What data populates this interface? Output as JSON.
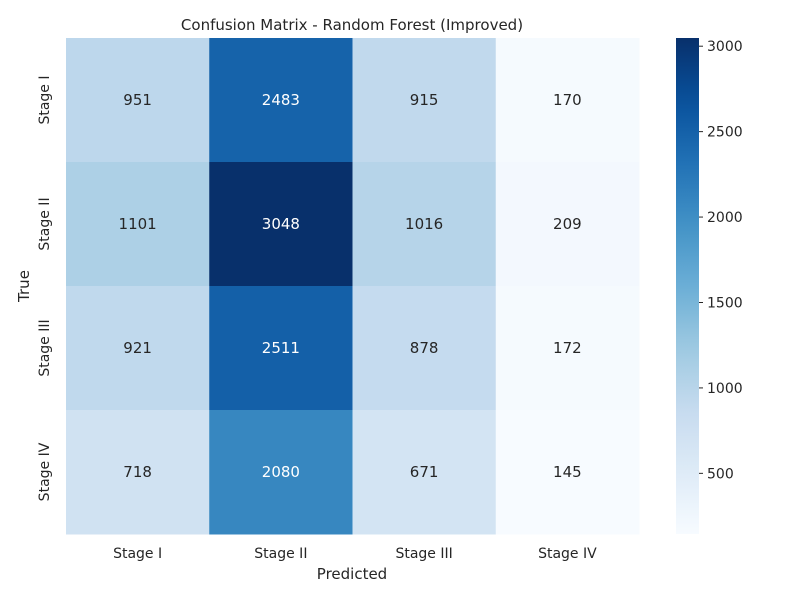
{
  "chart_data": {
    "type": "heatmap",
    "title": "Confusion Matrix - Random Forest (Improved)",
    "xlabel": "Predicted",
    "ylabel": "True",
    "x_categories": [
      "Stage I",
      "Stage II",
      "Stage III",
      "Stage IV"
    ],
    "y_categories": [
      "Stage I",
      "Stage II",
      "Stage III",
      "Stage IV"
    ],
    "values": [
      [
        951,
        2483,
        915,
        170
      ],
      [
        1101,
        3048,
        1016,
        209
      ],
      [
        921,
        2511,
        878,
        172
      ],
      [
        718,
        2080,
        671,
        145
      ]
    ],
    "colormap": "Blues",
    "colorbar": {
      "range": [
        145,
        3048
      ],
      "ticks": [
        500,
        1000,
        1500,
        2000,
        2500,
        3000
      ]
    }
  }
}
